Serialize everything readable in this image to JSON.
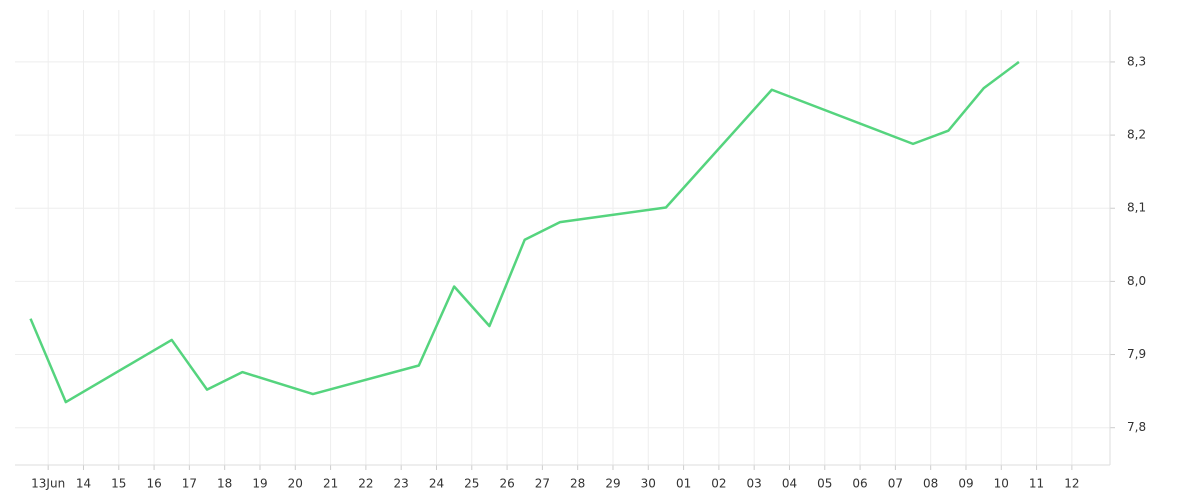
{
  "chart_data": {
    "type": "line",
    "x": [
      0.5,
      1.5,
      4.5,
      5.5,
      6.5,
      8.5,
      11.5,
      12.5,
      13.5,
      14.5,
      15.5,
      18.5,
      21.5,
      25.5,
      26.5,
      27.5,
      28.5
    ],
    "series": [
      {
        "color": "#55d47e",
        "values": [
          7.949,
          7.835,
          7.92,
          7.852,
          7.876,
          7.846,
          7.885,
          7.993,
          7.939,
          8.057,
          8.081,
          8.101,
          8.262,
          8.188,
          8.206,
          8.264,
          8.3
        ]
      }
    ],
    "xlim": [
      0.06,
      31.08
    ],
    "xticks": [
      {
        "value": 1,
        "label": "13Jun"
      },
      {
        "value": 2,
        "label": "14"
      },
      {
        "value": 3,
        "label": "15"
      },
      {
        "value": 4,
        "label": "16"
      },
      {
        "value": 5,
        "label": "17"
      },
      {
        "value": 6,
        "label": "18"
      },
      {
        "value": 7,
        "label": "19"
      },
      {
        "value": 8,
        "label": "20"
      },
      {
        "value": 9,
        "label": "21"
      },
      {
        "value": 10,
        "label": "22"
      },
      {
        "value": 11,
        "label": "23"
      },
      {
        "value": 12,
        "label": "24"
      },
      {
        "value": 13,
        "label": "25"
      },
      {
        "value": 14,
        "label": "26"
      },
      {
        "value": 15,
        "label": "27"
      },
      {
        "value": 16,
        "label": "28"
      },
      {
        "value": 17,
        "label": "29"
      },
      {
        "value": 18,
        "label": "30"
      },
      {
        "value": 19,
        "label": "01"
      },
      {
        "value": 20,
        "label": "02"
      },
      {
        "value": 21,
        "label": "03"
      },
      {
        "value": 22,
        "label": "04"
      },
      {
        "value": 23,
        "label": "05"
      },
      {
        "value": 24,
        "label": "06"
      },
      {
        "value": 25,
        "label": "07"
      },
      {
        "value": 26,
        "label": "08"
      },
      {
        "value": 27,
        "label": "09"
      },
      {
        "value": 28,
        "label": "10"
      },
      {
        "value": 29,
        "label": "11"
      },
      {
        "value": 30,
        "label": "12"
      }
    ],
    "ylim": [
      7.749,
      8.371
    ],
    "yticks": [
      {
        "value": 7.8,
        "label": "7,8"
      },
      {
        "value": 7.9,
        "label": "7,9"
      },
      {
        "value": 8.0,
        "label": "8,0"
      },
      {
        "value": 8.1,
        "label": "8,1"
      },
      {
        "value": 8.2,
        "label": "8,2"
      },
      {
        "value": 8.3,
        "label": "8,3"
      }
    ],
    "grid": true
  }
}
